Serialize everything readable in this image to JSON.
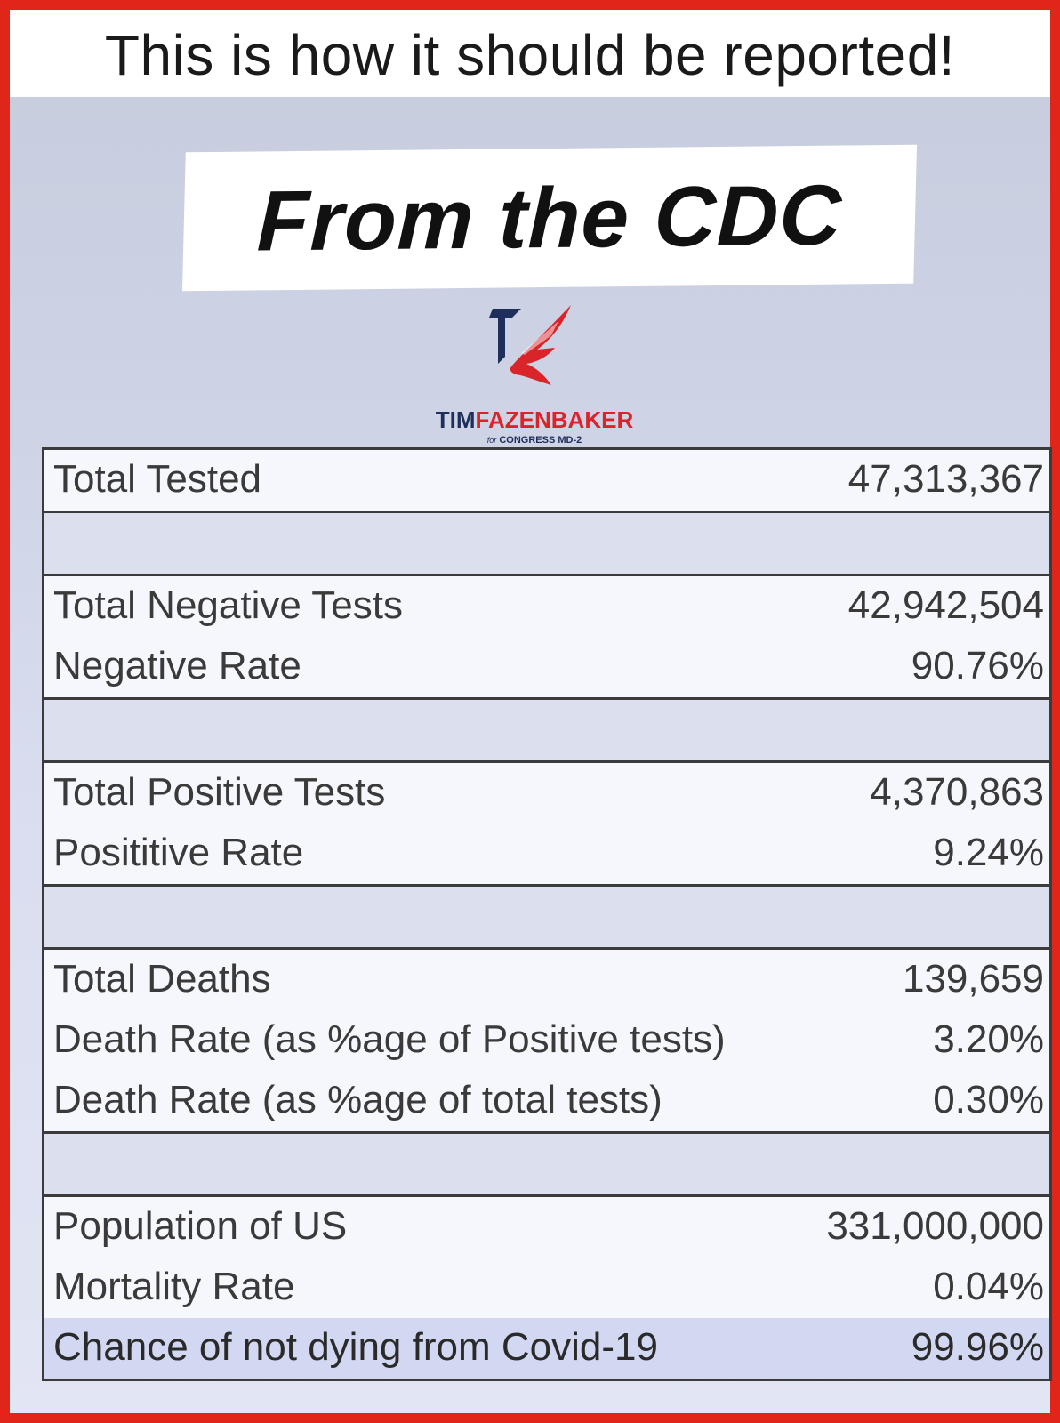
{
  "headline": "This is how it should be reported!",
  "source_banner": "From the CDC",
  "logo": {
    "name_first": "TIM",
    "name_last": "FAZENBAKER",
    "sub_for": "for",
    "sub_office": "CONGRESS MD-2"
  },
  "colors": {
    "border": "#e0261a",
    "logo_navy": "#1f2e5a",
    "logo_red": "#d9252a"
  },
  "table": {
    "total_tested": {
      "label": "Total Tested",
      "value": "47,313,367"
    },
    "total_negative": {
      "label": "Total Negative Tests",
      "value": "42,942,504"
    },
    "negative_rate": {
      "label": "Negative Rate",
      "value": "90.76%"
    },
    "total_positive": {
      "label": "Total Positive Tests",
      "value": "4,370,863"
    },
    "positive_rate": {
      "label": "Posititive Rate",
      "value": "9.24%"
    },
    "total_deaths": {
      "label": "Total Deaths",
      "value": "139,659"
    },
    "death_rate_positive": {
      "label": "Death Rate (as %age of Positive tests)",
      "value": "3.20%"
    },
    "death_rate_total": {
      "label": "Death Rate (as %age of total tests)",
      "value": "0.30%"
    },
    "population": {
      "label": "Population of US",
      "value": "331,000,000"
    },
    "mortality_rate": {
      "label": "Mortality Rate",
      "value": "0.04%"
    },
    "chance_not_dying": {
      "label": "Chance of not dying from Covid-19",
      "value": "99.96%"
    }
  }
}
